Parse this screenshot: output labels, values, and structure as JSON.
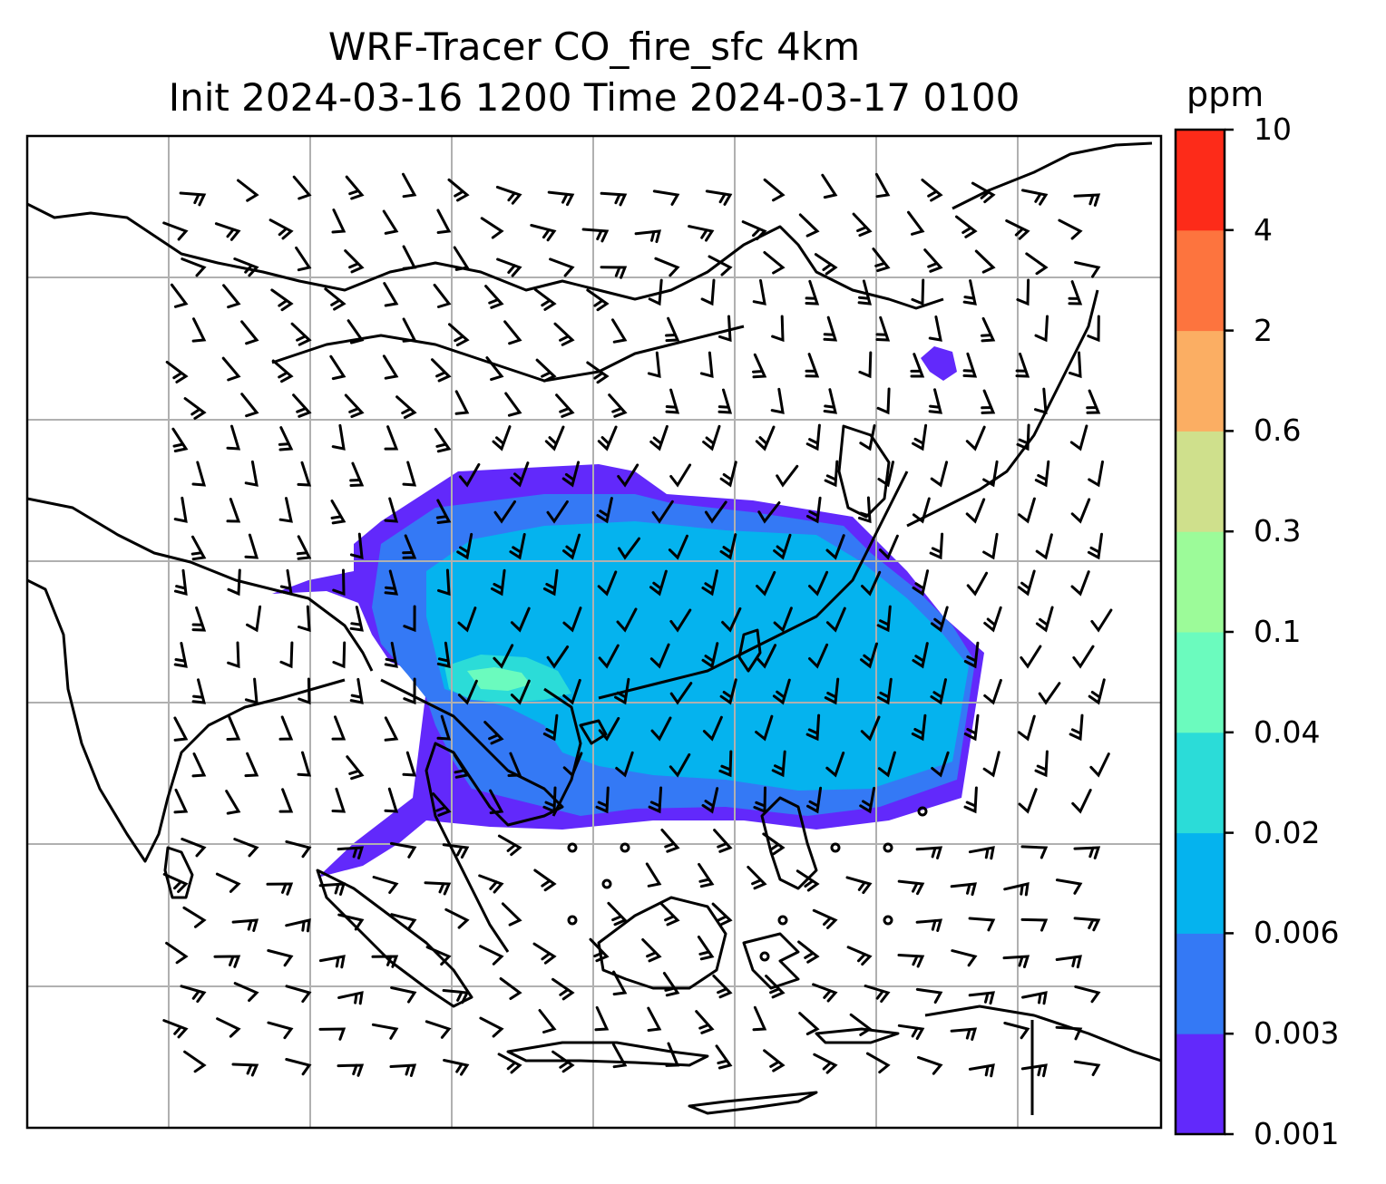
{
  "title": {
    "line1": "WRF-Tracer CO_fire_sfc 4km",
    "line2": "Init 2024-03-16 1200 Time 2024-03-17 0100"
  },
  "colorbar": {
    "unit": "ppm",
    "levels": [
      "0.001",
      "0.003",
      "0.006",
      "0.02",
      "0.04",
      "0.1",
      "0.3",
      "0.6",
      "2",
      "4",
      "10"
    ],
    "colors": [
      "#6229fb",
      "#3479f5",
      "#05b3ee",
      "#2bdcd8",
      "#6bfbbe",
      "#9cfb99",
      "#cfe08c",
      "#fbae63",
      "#fd743e",
      "#fd2b19"
    ]
  },
  "map": {
    "field": "CO_fire_sfc",
    "gridlines": true,
    "wind_barbs": true,
    "coastlines": true
  }
}
